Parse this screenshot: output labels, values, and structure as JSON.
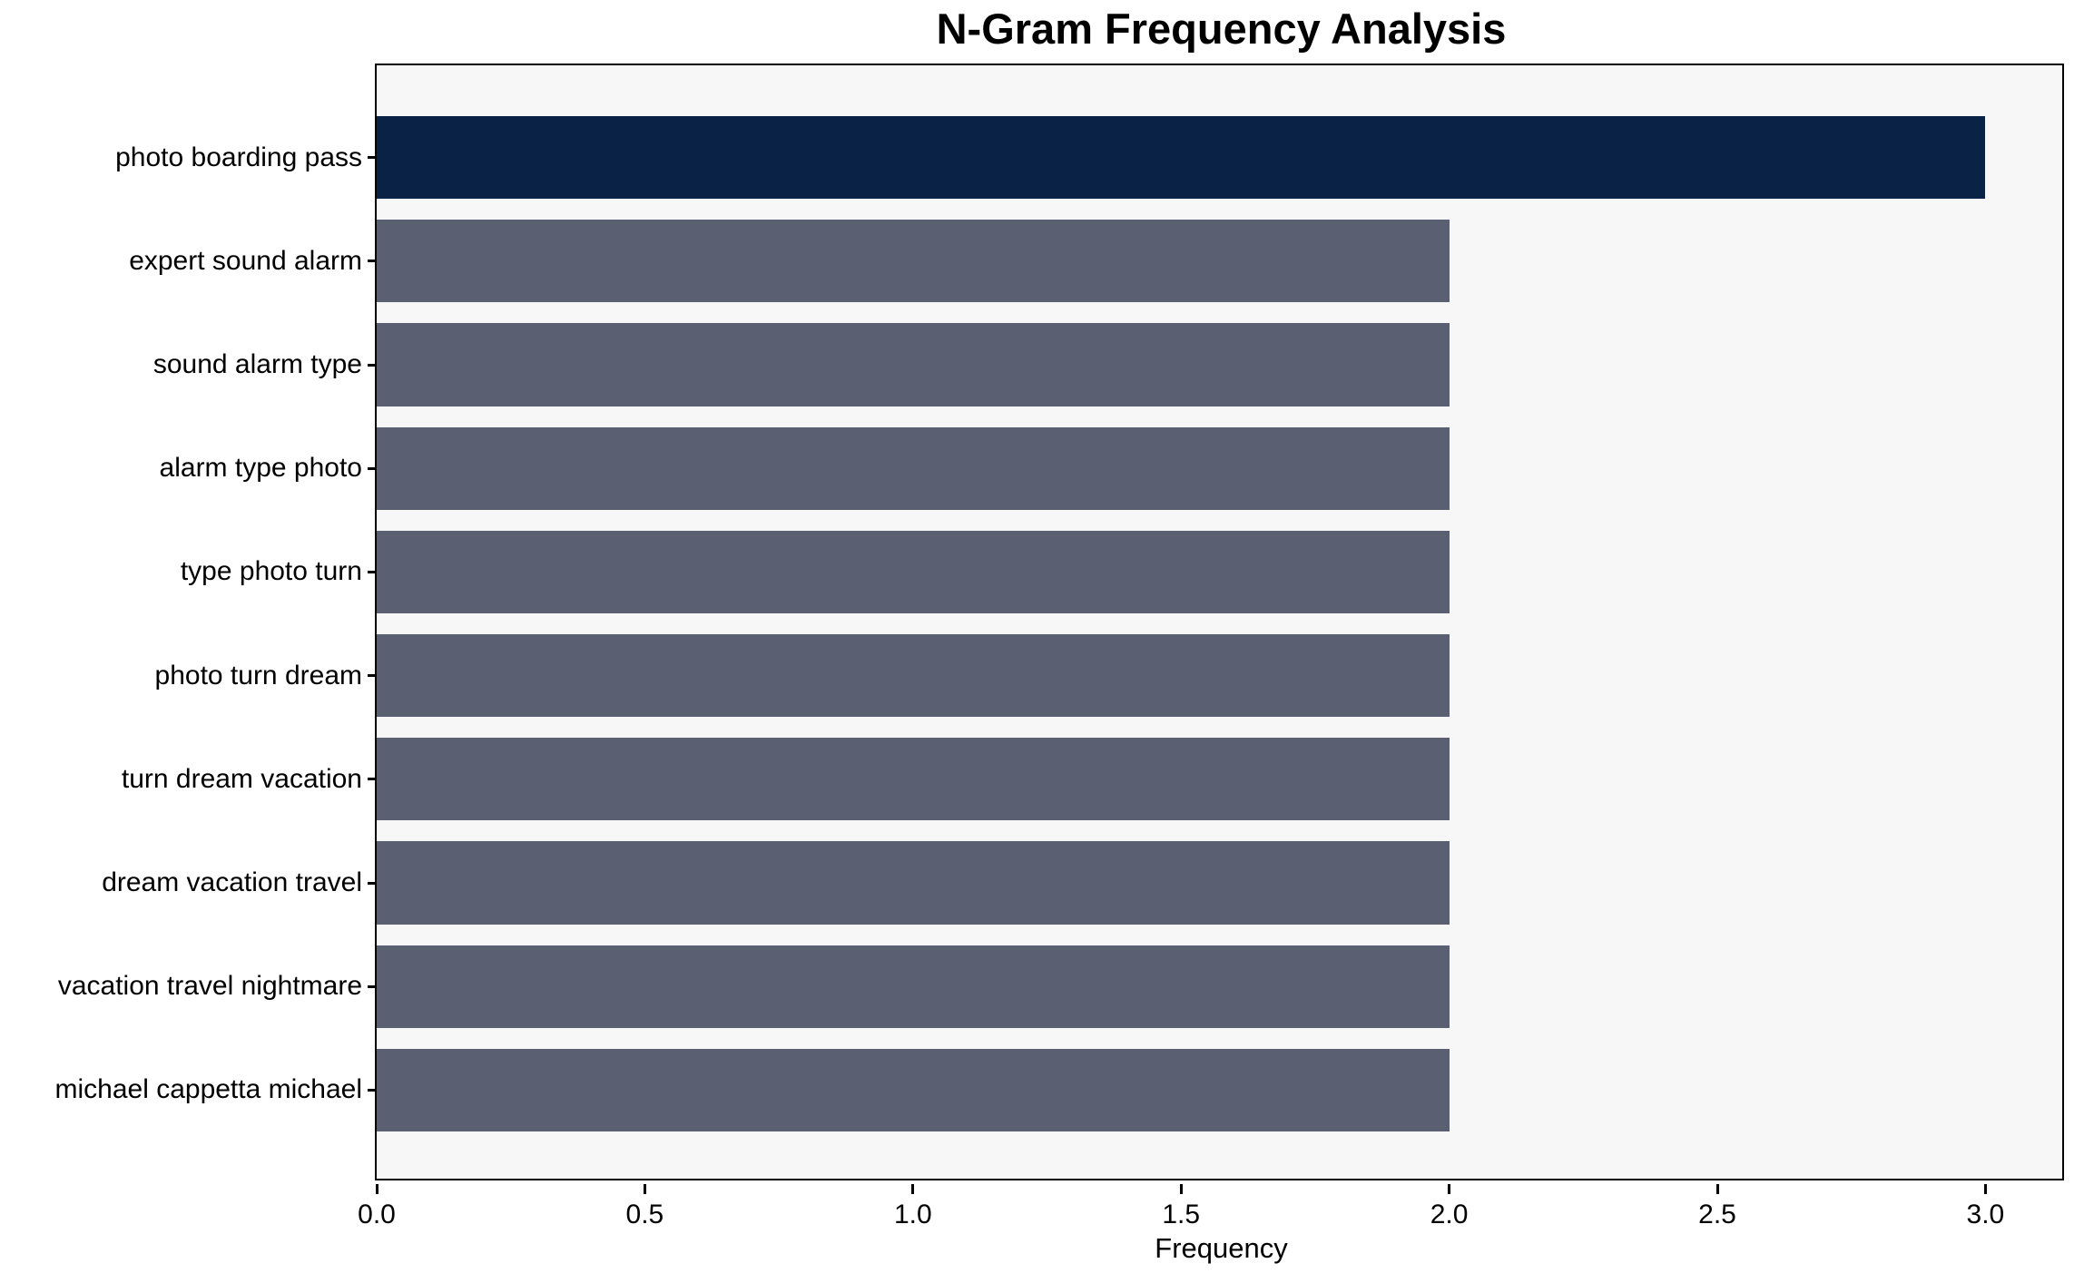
{
  "chart_data": {
    "type": "bar",
    "orientation": "horizontal",
    "title": "N-Gram Frequency Analysis",
    "xlabel": "Frequency",
    "ylabel": "",
    "categories": [
      "photo boarding pass",
      "expert sound alarm",
      "sound alarm type",
      "alarm type photo",
      "type photo turn",
      "photo turn dream",
      "turn dream vacation",
      "dream vacation travel",
      "vacation travel nightmare",
      "michael cappetta michael"
    ],
    "values": [
      3,
      2,
      2,
      2,
      2,
      2,
      2,
      2,
      2,
      2
    ],
    "xlim": [
      0,
      3.15
    ],
    "xtick_values": [
      0.0,
      0.5,
      1.0,
      1.5,
      2.0,
      2.5,
      3.0
    ],
    "xtick_labels": [
      "0.0",
      "0.5",
      "1.0",
      "1.5",
      "2.0",
      "2.5",
      "3.0"
    ],
    "grid": false,
    "legend": "none",
    "highlight_index": 0,
    "colors": {
      "highlight_bar": "#0b2247",
      "other_bars": "#5a6072",
      "plot_background": "#f7f7f7",
      "figure_background": "#ffffff",
      "spine": "#000000",
      "text": "#000000"
    }
  }
}
